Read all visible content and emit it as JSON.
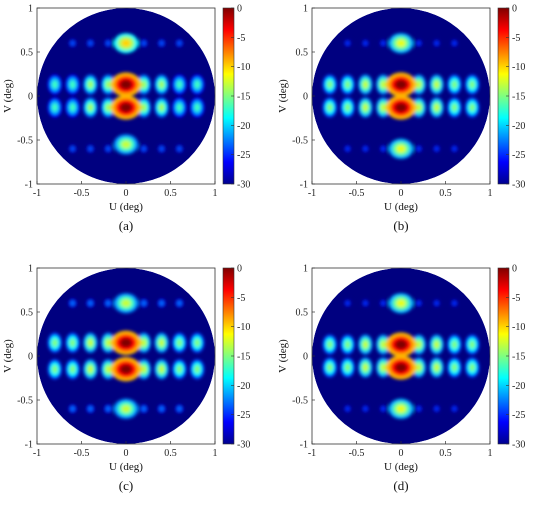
{
  "chart_data": [
    {
      "type": "heatmap",
      "caption": "(a)",
      "xlabel": "U (deg)",
      "ylabel": "V (deg)",
      "xlim": [
        -1,
        1
      ],
      "ylim": [
        -1,
        1
      ],
      "xticks": [
        "-1",
        "-0.5",
        "0",
        "0.5",
        "1"
      ],
      "yticks": [
        "1",
        "0.5",
        "0",
        "-0.5",
        "-1"
      ],
      "colorbar": {
        "range": [
          -30,
          0
        ],
        "ticks": [
          "0",
          "-5",
          "-10",
          "-15",
          "-20",
          "-25",
          "-30"
        ]
      },
      "main_lobes": [
        {
          "u": 0,
          "v": 0.13,
          "level": 0
        },
        {
          "u": 0,
          "v": -0.13,
          "level": 0
        }
      ],
      "lobe_columns_u": [
        -0.8,
        -0.6,
        -0.4,
        -0.2,
        0.2,
        0.4,
        0.6,
        0.8
      ],
      "lobe_rows_v": [
        0.13,
        -0.13
      ],
      "side_lobe_level": -14,
      "side_lobe_level_outer": -17,
      "vertical_lobes": [
        {
          "v": 0.6,
          "level": -10
        },
        {
          "v": -0.55,
          "level": -13
        }
      ],
      "faint_rows_v": [
        0.6,
        -0.6
      ],
      "faint_level": -24
    },
    {
      "type": "heatmap",
      "caption": "(b)",
      "xlabel": "U (deg)",
      "ylabel": "V (deg)",
      "xlim": [
        -1,
        1
      ],
      "ylim": [
        -1,
        1
      ],
      "xticks": [
        "-1",
        "-0.5",
        "0",
        "0.5",
        "1"
      ],
      "yticks": [
        "1",
        "0.5",
        "0",
        "-0.5",
        "-1"
      ],
      "colorbar": {
        "range": [
          -30,
          0
        ],
        "ticks": [
          "0",
          "-5",
          "-10",
          "-15",
          "-20",
          "-25",
          "-30"
        ]
      },
      "main_lobes": [
        {
          "u": 0,
          "v": 0.13,
          "level": 0
        },
        {
          "u": 0,
          "v": -0.13,
          "level": 0
        }
      ],
      "lobe_columns_u": [
        -0.8,
        -0.6,
        -0.4,
        -0.2,
        0.2,
        0.4,
        0.6,
        0.8
      ],
      "lobe_rows_v": [
        0.13,
        -0.13
      ],
      "side_lobe_level": -13,
      "side_lobe_level_outer": -15,
      "vertical_lobes": [
        {
          "v": 0.6,
          "level": -12
        },
        {
          "v": -0.6,
          "level": -12
        }
      ],
      "faint_rows_v": [
        0.6,
        -0.6
      ],
      "faint_level": -25
    },
    {
      "type": "heatmap",
      "caption": "(c)",
      "xlabel": "U (deg)",
      "ylabel": "V (deg)",
      "xlim": [
        -1,
        1
      ],
      "ylim": [
        -1,
        1
      ],
      "xticks": [
        "-1",
        "-0.5",
        "0",
        "0.5",
        "1"
      ],
      "yticks": [
        "1",
        "0.5",
        "0",
        "-0.5",
        "-1"
      ],
      "colorbar": {
        "range": [
          -30,
          0
        ],
        "ticks": [
          "0",
          "-5",
          "-10",
          "-15",
          "-20",
          "-25",
          "-30"
        ]
      },
      "main_lobes": [
        {
          "u": 0,
          "v": 0.15,
          "level": 0
        },
        {
          "u": 0,
          "v": -0.15,
          "level": 0
        }
      ],
      "lobe_columns_u": [
        -0.8,
        -0.6,
        -0.4,
        -0.2,
        0.2,
        0.4,
        0.6,
        0.8
      ],
      "lobe_rows_v": [
        0.15,
        -0.15
      ],
      "side_lobe_level": -13,
      "side_lobe_level_outer": -15,
      "vertical_lobes": [
        {
          "v": 0.6,
          "level": -13
        },
        {
          "v": -0.6,
          "level": -13
        }
      ],
      "faint_rows_v": [
        0.6,
        -0.6
      ],
      "faint_level": -23
    },
    {
      "type": "heatmap",
      "caption": "(d)",
      "xlabel": "U (deg)",
      "ylabel": "V (deg)",
      "xlim": [
        -1,
        1
      ],
      "ylim": [
        -1,
        1
      ],
      "xticks": [
        "-1",
        "-0.5",
        "0",
        "0.5",
        "1"
      ],
      "yticks": [
        "1",
        "0.5",
        "0",
        "-0.5",
        "-1"
      ],
      "colorbar": {
        "range": [
          -30,
          0
        ],
        "ticks": [
          "0",
          "-5",
          "-10",
          "-15",
          "-20",
          "-25",
          "-30"
        ]
      },
      "main_lobes": [
        {
          "u": 0,
          "v": 0.13,
          "level": 0
        },
        {
          "u": 0,
          "v": -0.13,
          "level": 0
        }
      ],
      "lobe_columns_u": [
        -0.8,
        -0.6,
        -0.4,
        -0.2,
        0.2,
        0.4,
        0.6,
        0.8
      ],
      "lobe_rows_v": [
        0.13,
        -0.13
      ],
      "side_lobe_level": -13,
      "side_lobe_level_outer": -15,
      "vertical_lobes": [
        {
          "v": 0.6,
          "level": -12
        },
        {
          "v": -0.6,
          "level": -12
        }
      ],
      "faint_rows_v": [
        0.6,
        -0.6
      ],
      "faint_level": -25
    }
  ]
}
